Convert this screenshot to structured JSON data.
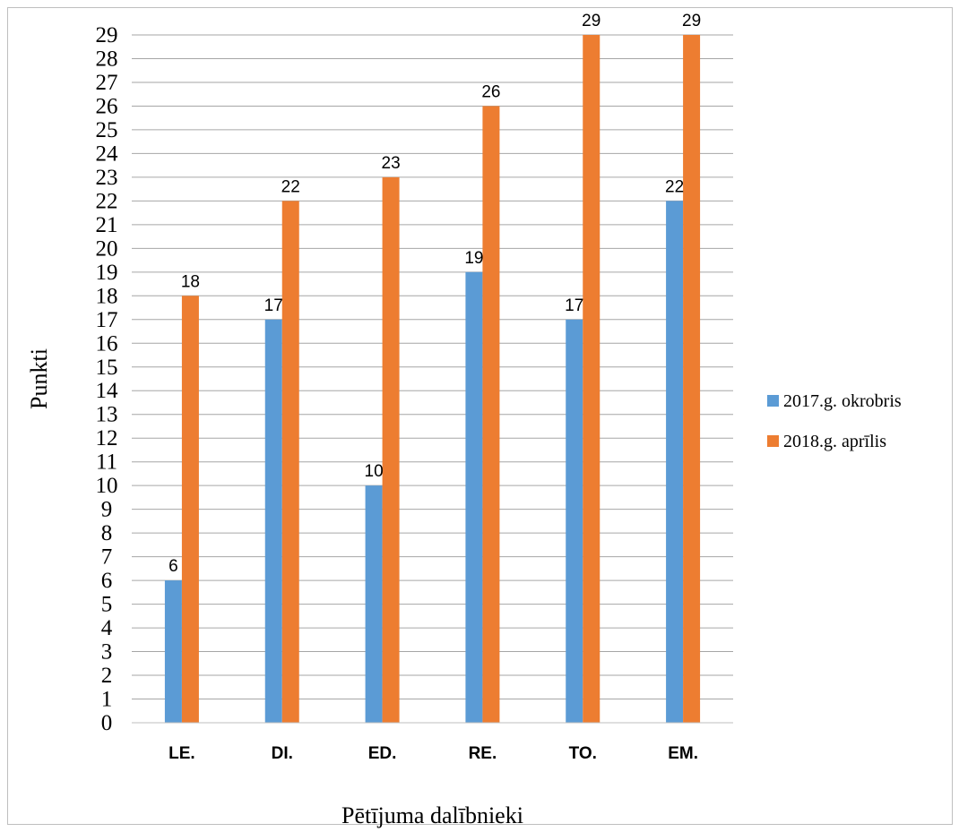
{
  "chart_data": {
    "type": "bar",
    "title": "",
    "xlabel": "Pētījuma dalībnieki",
    "ylabel": "Punkti",
    "categories": [
      "LE.",
      "DI.",
      "ED.",
      "RE.",
      "TO.",
      "EM."
    ],
    "series": [
      {
        "name": "2017.g. okrobris",
        "values": [
          6,
          17,
          10,
          19,
          17,
          22
        ],
        "color": "#5b9bd5"
      },
      {
        "name": "2018.g. aprīlis",
        "values": [
          18,
          22,
          23,
          26,
          29,
          29
        ],
        "color": "#ed7d31"
      }
    ],
    "ylim": [
      0,
      29
    ],
    "ytick_step": 1,
    "grid": true,
    "legend_position": "right",
    "data_labels": true
  }
}
